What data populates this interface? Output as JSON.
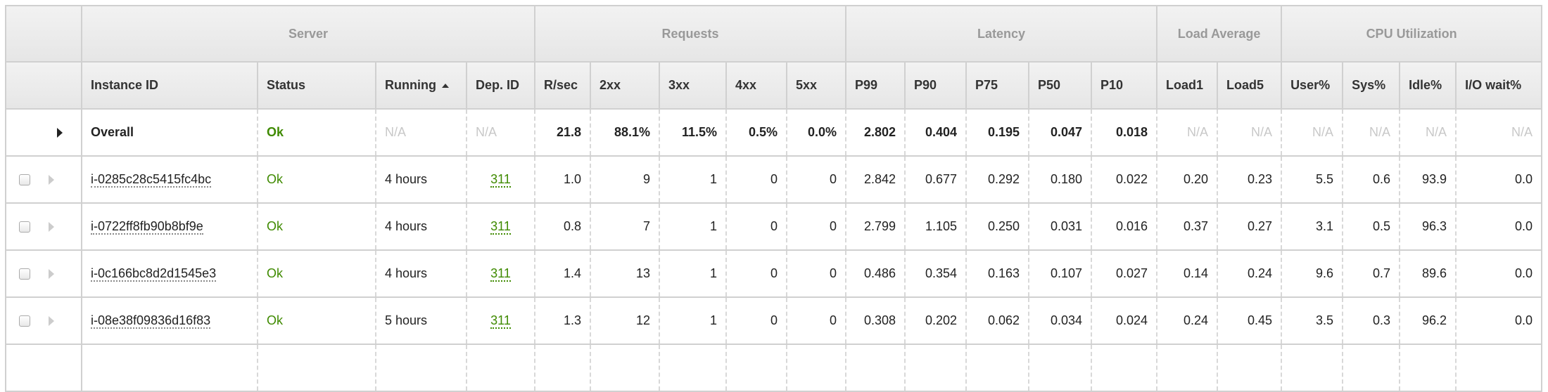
{
  "groups": [
    {
      "label": "",
      "span": 1
    },
    {
      "label": "Server",
      "span": 4
    },
    {
      "label": "Requests",
      "span": 5
    },
    {
      "label": "Latency",
      "span": 5
    },
    {
      "label": "Load Average",
      "span": 2
    },
    {
      "label": "CPU Utilization",
      "span": 4
    }
  ],
  "columns": [
    "",
    "Instance ID",
    "Status",
    "Running",
    "Dep. ID",
    "R/sec",
    "2xx",
    "3xx",
    "4xx",
    "5xx",
    "P99",
    "P90",
    "P75",
    "P50",
    "P10",
    "Load1",
    "Load5",
    "User%",
    "Sys%",
    "Idle%",
    "I/O wait%"
  ],
  "sorted_column": "Running",
  "sort_direction": "ascending",
  "overall": [
    "Overall",
    "Ok",
    "N/A",
    "N/A",
    "21.8",
    "88.1%",
    "11.5%",
    "0.5%",
    "0.0%",
    "2.802",
    "0.404",
    "0.195",
    "0.047",
    "0.018",
    "N/A",
    "N/A",
    "N/A",
    "N/A",
    "N/A",
    "N/A"
  ],
  "rows": [
    [
      "i-0285c28c5415fc4bc",
      "Ok",
      "4 hours",
      "311",
      "1.0",
      "9",
      "1",
      "0",
      "0",
      "2.842",
      "0.677",
      "0.292",
      "0.180",
      "0.022",
      "0.20",
      "0.23",
      "5.5",
      "0.6",
      "93.9",
      "0.0"
    ],
    [
      "i-0722ff8fb90b8bf9e",
      "Ok",
      "4 hours",
      "311",
      "0.8",
      "7",
      "1",
      "0",
      "0",
      "2.799",
      "1.105",
      "0.250",
      "0.031",
      "0.016",
      "0.37",
      "0.27",
      "3.1",
      "0.5",
      "96.3",
      "0.0"
    ],
    [
      "i-0c166bc8d2d1545e3",
      "Ok",
      "4 hours",
      "311",
      "1.4",
      "13",
      "1",
      "0",
      "0",
      "0.486",
      "0.354",
      "0.163",
      "0.107",
      "0.027",
      "0.14",
      "0.24",
      "9.6",
      "0.7",
      "89.6",
      "0.0"
    ],
    [
      "i-08e38f09836d16f83",
      "Ok",
      "5 hours",
      "311",
      "1.3",
      "12",
      "1",
      "0",
      "0",
      "0.308",
      "0.202",
      "0.062",
      "0.034",
      "0.024",
      "0.24",
      "0.45",
      "3.5",
      "0.3",
      "96.2",
      "0.0"
    ]
  ],
  "colors": {
    "ok": "#3f8a00",
    "na": "#c8c8c8",
    "header_group": "#999999"
  }
}
